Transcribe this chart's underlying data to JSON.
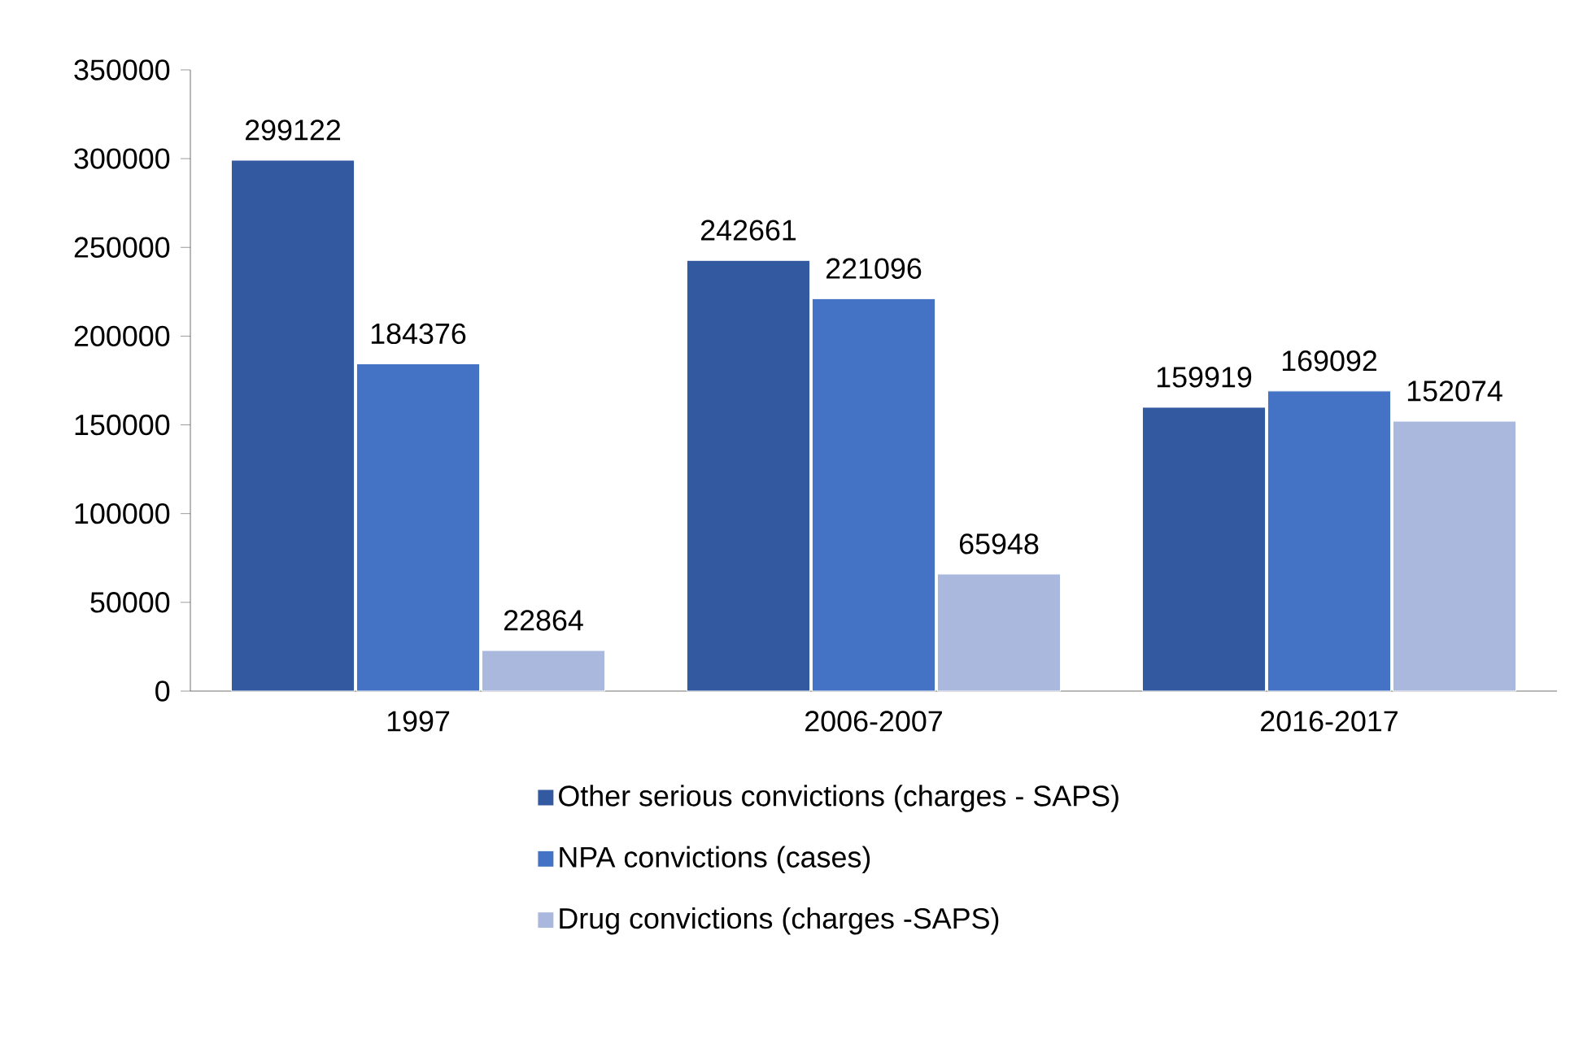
{
  "chart_data": {
    "type": "bar",
    "categories": [
      "1997",
      "2006-2007",
      "2016-2017"
    ],
    "series": [
      {
        "name": "Other serious convictions (charges - SAPS)",
        "color": "#335aa1",
        "values": [
          299122,
          242661,
          159919
        ]
      },
      {
        "name": "NPA convictions (cases)",
        "color": "#4472c4",
        "values": [
          184376,
          221096,
          169092
        ]
      },
      {
        "name": "Drug convictions (charges -SAPS)",
        "color": "#a9b8dc",
        "values": [
          22864,
          65948,
          152074
        ]
      }
    ],
    "ylim": [
      0,
      350000
    ],
    "yticks": [
      0,
      50000,
      100000,
      150000,
      200000,
      250000,
      300000,
      350000
    ],
    "data_labels": true,
    "legend": "bottom",
    "grid": false
  }
}
